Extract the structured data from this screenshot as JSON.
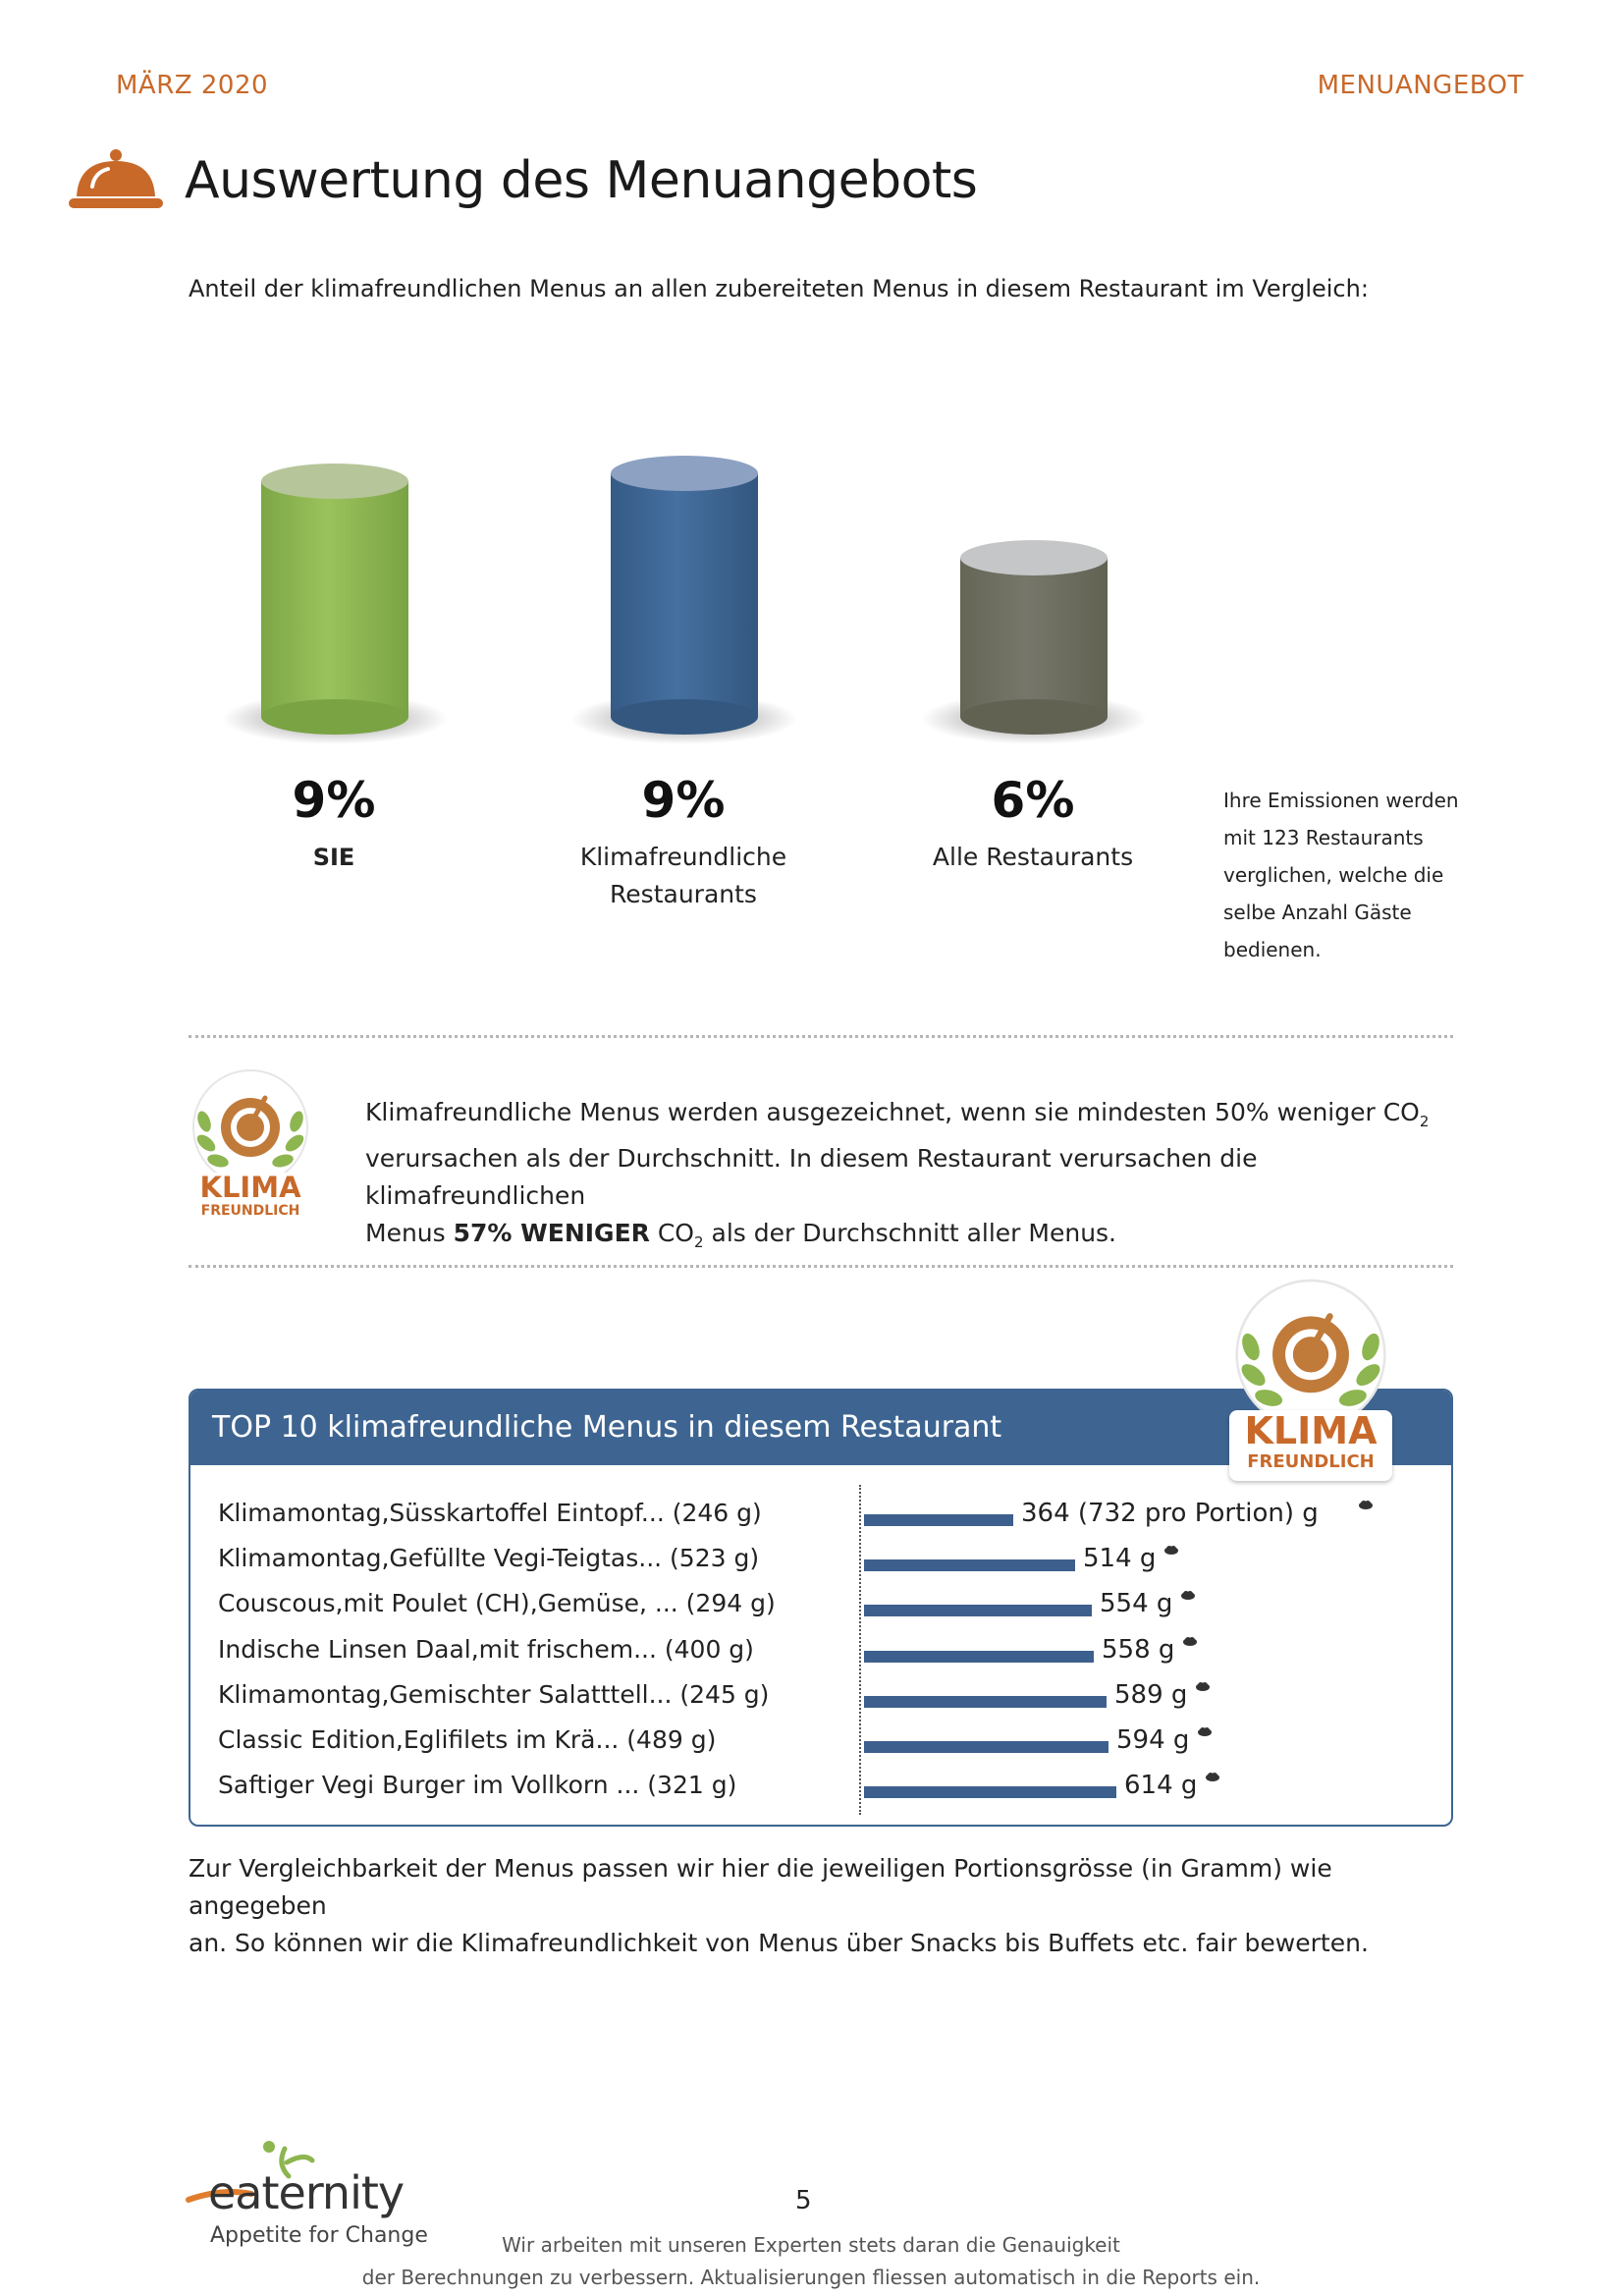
{
  "header": {
    "date": "MÄRZ 2020",
    "section": "MENUANGEBOT"
  },
  "page_title": "Auswertung des Menuangebots",
  "intro_text": "Anteil der klimafreundlichen Menus an allen zubereiteten Menus in diesem Restaurant im Vergleich:",
  "comparison": {
    "items": [
      {
        "value": "9%",
        "label": "SIE",
        "label2": "",
        "color": "#8db550",
        "percent": 9
      },
      {
        "value": "9%",
        "label": "Klimafreundliche",
        "label2": "Restaurants",
        "color": "#3e6591",
        "percent": 9
      },
      {
        "value": "6%",
        "label": "Alle Restaurants",
        "label2": "",
        "color": "#6f705f",
        "percent": 6
      }
    ],
    "note_lines": [
      "Ihre Emissionen werden",
      "mit 123 Restaurants",
      "verglichen, welche die",
      "selbe Anzahl Gäste",
      "bedienen."
    ]
  },
  "badge": {
    "line1": "KLIMA",
    "line2": "FREUNDLICH"
  },
  "klima_text": {
    "line1_a": "Klimafreundliche Menus werden ausgezeichnet, wenn sie mindesten 50% weniger CO",
    "sub": "2",
    "line2": "verursachen als der Durchschnitt. In diesem Restaurant verursachen die klimafreundlichen",
    "line3_a": "Menus ",
    "line3_bold": "57% WENIGER",
    "line3_b": " CO",
    "line3_c": " als der Durchschnitt aller Menus."
  },
  "top10": {
    "title": "TOP 10 klimafreundliche Menus in diesem Restaurant",
    "rows": [
      {
        "label": "Klimamontag,Süsskartoffel Eintopf... (246 g)",
        "value_text": "364 (732 pro Portion) g",
        "value": 364
      },
      {
        "label": "Klimamontag,Gefüllte Vegi-Teigtas... (523 g)",
        "value_text": "514 g",
        "value": 514
      },
      {
        "label": "Couscous,mit Poulet (CH),Gemüse, ... (294 g)",
        "value_text": "554 g",
        "value": 554
      },
      {
        "label": "Indische Linsen Daal,mit frischem... (400 g)",
        "value_text": "558 g",
        "value": 558
      },
      {
        "label": "Klimamontag,Gemischter Salatttell... (245 g)",
        "value_text": "589 g",
        "value": 589
      },
      {
        "label": "Classic Edition,Eglifilets im Krä... (489 g)",
        "value_text": "594 g",
        "value": 594
      },
      {
        "label": "Saftiger Vegi Burger im Vollkorn ... (321 g)",
        "value_text": "614 g",
        "value": 614
      }
    ]
  },
  "bottom_text": {
    "line1": "Zur Vergleichbarkeit der Menus passen wir hier die jeweiligen Portionsgrösse (in Gramm) wie angegeben",
    "line2": "an. So können wir die Klimafreundlichkeit von Menus über Snacks bis Buffets etc. fair bewerten."
  },
  "logo": {
    "brand": "eaternity",
    "tagline": "Appetite for Change"
  },
  "page_number": "5",
  "footer": {
    "line1": "Wir arbeiten mit unseren Experten stets daran die Genauigkeit",
    "line2": "der Berechnungen zu verbessern. Aktualisierungen fliessen automatisch in die Reports ein."
  },
  "colors": {
    "accent": "#c8692a",
    "blue": "#3e6591",
    "green": "#8db550",
    "grey": "#6f705f"
  }
}
